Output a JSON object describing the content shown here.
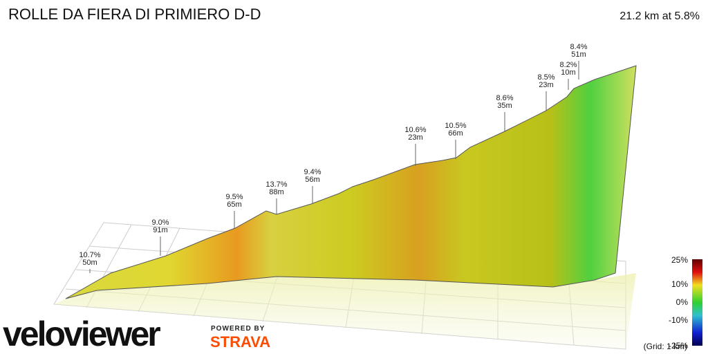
{
  "header": {
    "title": "ROLLE DA FIERA DI PRIMIERO D-D",
    "summary": "21.2 km at 5.8%"
  },
  "annotations": [
    {
      "grade": "10.7%",
      "length": "50m"
    },
    {
      "grade": "9.0%",
      "length": "91m"
    },
    {
      "grade": "9.5%",
      "length": "65m"
    },
    {
      "grade": "13.7%",
      "length": "88m"
    },
    {
      "grade": "9.4%",
      "length": "56m"
    },
    {
      "grade": "10.6%",
      "length": "23m"
    },
    {
      "grade": "10.5%",
      "length": "66m"
    },
    {
      "grade": "8.6%",
      "length": "35m"
    },
    {
      "grade": "8.5%",
      "length": "23m"
    },
    {
      "grade": "8.2%",
      "length": "10m"
    },
    {
      "grade": "8.4%",
      "length": "51m"
    }
  ],
  "legend": {
    "ticks": [
      "25%",
      "10%",
      "0%",
      "-10%",
      "-25%"
    ],
    "grid_note": "(Grid: 1 km)"
  },
  "branding": {
    "logo": "veloviewer",
    "powered": "POWERED BY",
    "partner": "STRAVA"
  }
}
